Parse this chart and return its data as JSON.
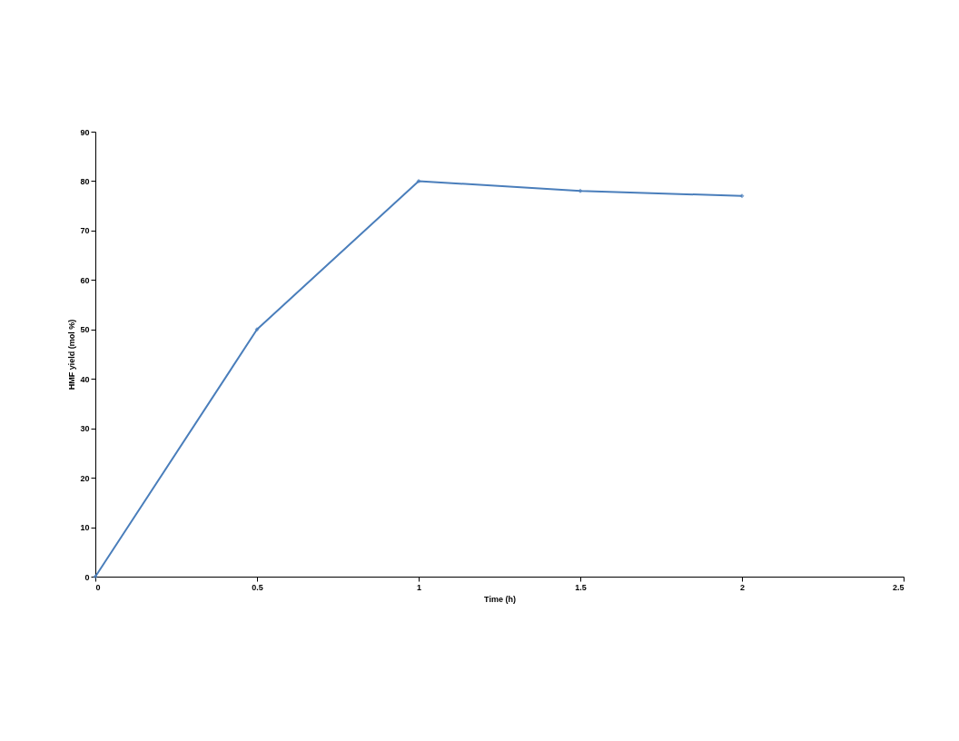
{
  "chart_data": {
    "type": "line",
    "xlabel": "Time (h)",
    "ylabel": "HMF yield (mol %)",
    "x": [
      0,
      0.5,
      1,
      1.5,
      2
    ],
    "series": [
      {
        "color": "#4a7ebb",
        "values": [
          0,
          50,
          80,
          78,
          77
        ]
      }
    ],
    "xlim": [
      0,
      2.5
    ],
    "xticks": [
      0,
      0.5,
      1,
      1.5,
      2,
      2.5
    ],
    "ylim": [
      0,
      90
    ],
    "yticks": [
      0,
      10,
      20,
      30,
      40,
      50,
      60,
      70,
      80,
      90
    ],
    "grid": false,
    "marker": "diamond",
    "line_style": "solid"
  }
}
